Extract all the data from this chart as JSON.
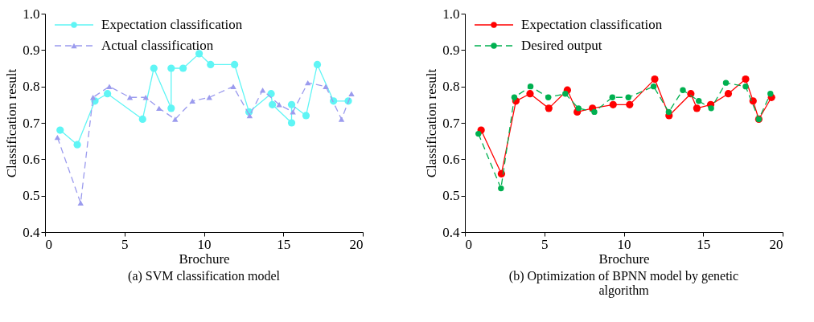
{
  "chart_data": [
    {
      "type": "line",
      "xlabel": "Brochure",
      "ylabel": "Classification result",
      "xlim": [
        0,
        20
      ],
      "xticks": [
        0,
        5,
        10,
        15,
        20
      ],
      "ylim": [
        0.4,
        1.0
      ],
      "yticks": [
        0.4,
        0.5,
        0.6,
        0.7,
        0.8,
        0.9,
        {
          "value": 1,
          "label": "1.0"
        }
      ],
      "grid": false,
      "legend": "top left",
      "annotations": [
        "(a) SVM classification model"
      ],
      "series": [
        {
          "name": "Expectation classification",
          "color": "#5ff5f5",
          "marker": "circle",
          "line_style": "solid",
          "x": [
            0.95,
            2.03,
            3.14,
            3.93,
            6.14,
            6.85,
            7.94,
            7.94,
            8.69,
            9.7,
            10.42,
            11.93,
            12.84,
            14.23,
            14.31,
            15.52,
            15.52,
            16.43,
            17.14,
            18.16,
            19.09
          ],
          "values": [
            0.68,
            0.64,
            0.76,
            0.78,
            0.71,
            0.85,
            0.74,
            0.85,
            0.85,
            0.89,
            0.86,
            0.86,
            0.73,
            0.78,
            0.75,
            0.7,
            0.75,
            0.72,
            0.86,
            0.76,
            0.76
          ]
        },
        {
          "name": "Actual classification",
          "color": "#9b9bee",
          "marker": "triangle",
          "line_style": "dashed",
          "x": [
            0.78,
            2.24,
            3.02,
            4.05,
            5.34,
            6.34,
            7.18,
            8.19,
            9.28,
            10.34,
            11.85,
            12.88,
            13.7,
            14.74,
            15.6,
            16.54,
            17.67,
            18.66,
            19.29
          ],
          "values": [
            0.66,
            0.48,
            0.77,
            0.8,
            0.77,
            0.77,
            0.74,
            0.71,
            0.76,
            0.77,
            0.8,
            0.72,
            0.79,
            0.75,
            0.73,
            0.81,
            0.8,
            0.71,
            0.78
          ]
        }
      ]
    },
    {
      "type": "line",
      "xlabel": "Brochure",
      "ylabel": "Classification result",
      "xlim": [
        0,
        20
      ],
      "xticks": [
        0,
        5,
        10,
        15,
        20
      ],
      "ylim": [
        0.4,
        1.0
      ],
      "yticks": [
        0.4,
        0.5,
        0.6,
        0.7,
        0.8,
        0.9,
        {
          "value": 1,
          "label": "1.0"
        }
      ],
      "grid": false,
      "legend": "top left",
      "annotations": [
        "(b) Optimization of BPNN model by genetic algorithm"
      ],
      "series": [
        {
          "name": "Expectation classification",
          "color": "#ff0000",
          "marker": "circle",
          "line_style": "solid",
          "x": [
            1.02,
            2.3,
            3.21,
            4.1,
            5.28,
            6.45,
            7.07,
            8.03,
            9.33,
            10.37,
            11.95,
            12.85,
            14.22,
            14.6,
            15.47,
            16.58,
            17.67,
            18.14,
            18.5,
            19.3
          ],
          "values": [
            0.68,
            0.56,
            0.76,
            0.78,
            0.74,
            0.79,
            0.73,
            0.74,
            0.75,
            0.75,
            0.82,
            0.72,
            0.78,
            0.74,
            0.75,
            0.78,
            0.82,
            0.76,
            0.71,
            0.77
          ]
        },
        {
          "name": "Desired output",
          "color": "#00b050",
          "marker": "circle",
          "line_style": "dashed",
          "x": [
            0.85,
            2.27,
            3.11,
            4.13,
            5.25,
            6.32,
            7.15,
            8.15,
            9.28,
            10.29,
            11.88,
            12.83,
            13.72,
            14.72,
            15.5,
            16.43,
            17.67,
            18.5,
            19.23
          ],
          "values": [
            0.67,
            0.52,
            0.77,
            0.8,
            0.77,
            0.78,
            0.74,
            0.73,
            0.77,
            0.77,
            0.8,
            0.73,
            0.79,
            0.76,
            0.74,
            0.81,
            0.8,
            0.71,
            0.78
          ]
        }
      ]
    }
  ]
}
